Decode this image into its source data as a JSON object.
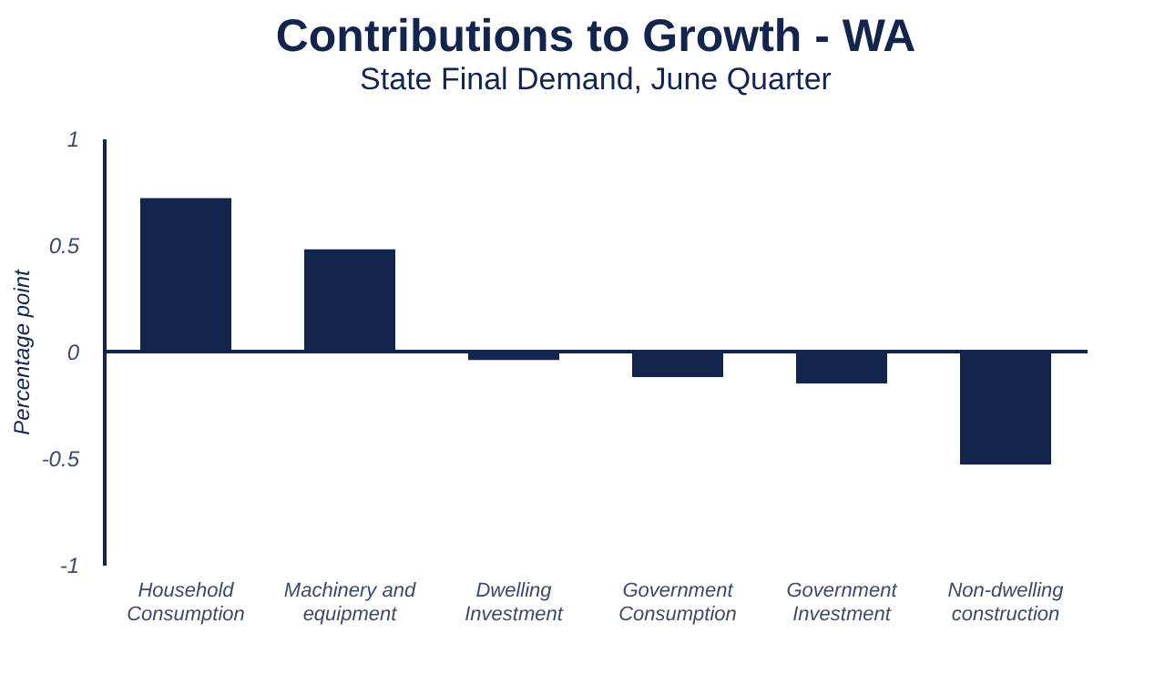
{
  "chart_data": {
    "type": "bar",
    "title": "Contributions to Growth - WA",
    "subtitle": "State Final Demand, June Quarter",
    "ylabel": "Percentage point",
    "categories": [
      "Household\nConsumption",
      "Machinery and\nequipment",
      "Dwelling\nInvestment",
      "Government\nConsumption",
      "Government\nInvestment",
      "Non-dwelling\nconstruction"
    ],
    "values": [
      0.72,
      0.48,
      -0.04,
      -0.12,
      -0.15,
      -0.53
    ],
    "color": "#14254d",
    "ylim": [
      -1,
      1
    ],
    "yticks": [
      -1,
      -0.5,
      0,
      0.5,
      1
    ],
    "grid": false
  }
}
